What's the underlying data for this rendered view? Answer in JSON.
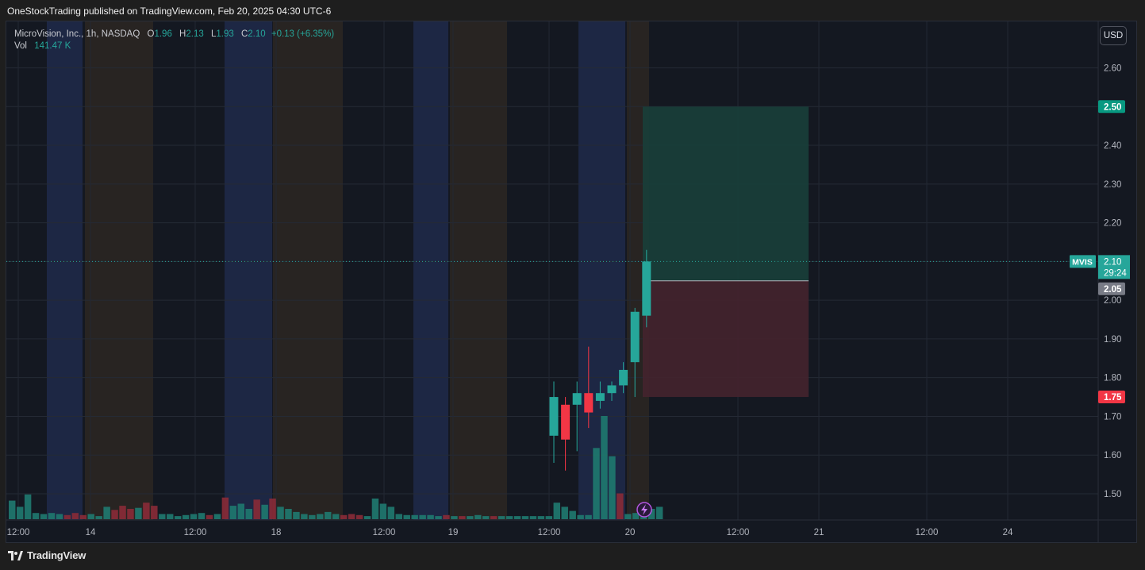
{
  "header": {
    "published": "OneStockTrading published on TradingView.com, Feb 20, 2025 04:30 UTC-6"
  },
  "legend": {
    "symbol": "MicroVision, Inc., 1h, NASDAQ",
    "o_key": "O",
    "o": "1.96",
    "h_key": "H",
    "h": "2.13",
    "l_key": "L",
    "l": "1.93",
    "c_key": "C",
    "c": "2.10",
    "change": "+0.13 (+6.35%)",
    "vol_key": "Vol",
    "vol": "141.47 K"
  },
  "currency_button": "USD",
  "branding": {
    "logo_icon": "tradingview-logo-icon",
    "name": "TradingView"
  },
  "colors": {
    "up": "#26a69a",
    "down": "#f23645",
    "bg": "#141821",
    "session_pre": "#1f2a4a",
    "session_post": "#2b2722",
    "target_zone": "#183f3a",
    "stop_zone": "#44232d"
  },
  "chart_data": {
    "type": "candlestick",
    "symbol": "MVIS",
    "interval": "1h",
    "yaxis": {
      "ylim": [
        1.42,
        2.72
      ],
      "ticks": [
        "1.50",
        "1.60",
        "1.70",
        "1.80",
        "1.90",
        "2.00",
        "2.10",
        "2.20",
        "2.30",
        "2.40",
        "2.50",
        "2.60"
      ]
    },
    "xaxis": {
      "ticks": [
        "12:00",
        "14",
        "12:00",
        "18",
        "12:00",
        "19",
        "12:00",
        "20",
        "12:00",
        "21",
        "12:00",
        "24"
      ]
    },
    "sessions": [
      {
        "type": "pre"
      },
      {
        "type": "post"
      },
      {
        "type": "pre"
      },
      {
        "type": "post"
      },
      {
        "type": "pre"
      },
      {
        "type": "post"
      },
      {
        "type": "pre"
      },
      {
        "type": "post"
      }
    ],
    "candles": [
      {
        "o": 1.65,
        "h": 1.79,
        "l": 1.58,
        "c": 1.75
      },
      {
        "o": 1.73,
        "h": 1.75,
        "l": 1.56,
        "c": 1.64
      },
      {
        "o": 1.73,
        "h": 1.79,
        "l": 1.61,
        "c": 1.76
      },
      {
        "o": 1.76,
        "h": 1.88,
        "l": 1.67,
        "c": 1.71
      },
      {
        "o": 1.74,
        "h": 1.79,
        "l": 1.72,
        "c": 1.76
      },
      {
        "o": 1.76,
        "h": 1.79,
        "l": 1.74,
        "c": 1.78
      },
      {
        "o": 1.78,
        "h": 1.84,
        "l": 1.76,
        "c": 1.82
      },
      {
        "o": 1.84,
        "h": 1.98,
        "l": 1.75,
        "c": 1.97
      },
      {
        "o": 1.96,
        "h": 2.13,
        "l": 1.93,
        "c": 2.1
      }
    ],
    "volume": [
      {
        "v": 0.18,
        "up": true
      },
      {
        "v": 0.12,
        "up": true
      },
      {
        "v": 0.24,
        "up": true
      },
      {
        "v": 0.06,
        "up": true
      },
      {
        "v": 0.05,
        "up": true
      },
      {
        "v": 0.06,
        "up": true
      },
      {
        "v": 0.05,
        "up": true
      },
      {
        "v": 0.04,
        "up": false
      },
      {
        "v": 0.06,
        "up": false
      },
      {
        "v": 0.04,
        "up": false
      },
      {
        "v": 0.05,
        "up": true
      },
      {
        "v": 0.03,
        "up": true
      },
      {
        "v": 0.12,
        "up": true
      },
      {
        "v": 0.09,
        "up": false
      },
      {
        "v": 0.13,
        "up": false
      },
      {
        "v": 0.1,
        "up": false
      },
      {
        "v": 0.11,
        "up": true
      },
      {
        "v": 0.16,
        "up": false
      },
      {
        "v": 0.13,
        "up": false
      },
      {
        "v": 0.05,
        "up": true
      },
      {
        "v": 0.05,
        "up": true
      },
      {
        "v": 0.03,
        "up": true
      },
      {
        "v": 0.04,
        "up": true
      },
      {
        "v": 0.05,
        "up": true
      },
      {
        "v": 0.06,
        "up": true
      },
      {
        "v": 0.04,
        "up": false
      },
      {
        "v": 0.05,
        "up": true
      },
      {
        "v": 0.21,
        "up": false
      },
      {
        "v": 0.13,
        "up": true
      },
      {
        "v": 0.15,
        "up": true
      },
      {
        "v": 0.1,
        "up": true
      },
      {
        "v": 0.19,
        "up": false
      },
      {
        "v": 0.14,
        "up": true
      },
      {
        "v": 0.2,
        "up": false
      },
      {
        "v": 0.12,
        "up": true
      },
      {
        "v": 0.1,
        "up": true
      },
      {
        "v": 0.07,
        "up": true
      },
      {
        "v": 0.05,
        "up": true
      },
      {
        "v": 0.04,
        "up": true
      },
      {
        "v": 0.05,
        "up": true
      },
      {
        "v": 0.07,
        "up": true
      },
      {
        "v": 0.05,
        "up": true
      },
      {
        "v": 0.04,
        "up": false
      },
      {
        "v": 0.05,
        "up": false
      },
      {
        "v": 0.04,
        "up": false
      },
      {
        "v": 0.03,
        "up": true
      },
      {
        "v": 0.2,
        "up": true
      },
      {
        "v": 0.15,
        "up": true
      },
      {
        "v": 0.12,
        "up": true
      },
      {
        "v": 0.05,
        "up": true
      },
      {
        "v": 0.04,
        "up": true
      },
      {
        "v": 0.04,
        "up": true
      },
      {
        "v": 0.04,
        "up": true
      },
      {
        "v": 0.04,
        "up": true
      },
      {
        "v": 0.03,
        "up": true
      },
      {
        "v": 0.04,
        "up": false
      },
      {
        "v": 0.03,
        "up": true
      },
      {
        "v": 0.03,
        "up": false
      },
      {
        "v": 0.03,
        "up": true
      },
      {
        "v": 0.04,
        "up": true
      },
      {
        "v": 0.03,
        "up": true
      },
      {
        "v": 0.03,
        "up": false
      },
      {
        "v": 0.03,
        "up": true
      },
      {
        "v": 0.03,
        "up": true
      },
      {
        "v": 0.03,
        "up": true
      },
      {
        "v": 0.03,
        "up": true
      },
      {
        "v": 0.03,
        "up": true
      },
      {
        "v": 0.03,
        "up": true
      },
      {
        "v": 0.03,
        "up": true
      },
      {
        "v": 0.16,
        "up": true
      },
      {
        "v": 0.12,
        "up": true
      },
      {
        "v": 0.08,
        "up": true
      },
      {
        "v": 0.04,
        "up": true
      },
      {
        "v": 0.04,
        "up": true
      },
      {
        "v": 0.69,
        "up": true
      },
      {
        "v": 1.0,
        "up": true
      },
      {
        "v": 0.61,
        "up": true
      },
      {
        "v": 0.25,
        "up": false
      },
      {
        "v": 0.05,
        "up": true
      },
      {
        "v": 0.06,
        "up": true
      },
      {
        "v": 0.08,
        "up": true
      },
      {
        "v": 0.1,
        "up": true
      },
      {
        "v": 0.12,
        "up": true
      }
    ],
    "position": {
      "entry": 2.05,
      "target": 2.5,
      "stop": 1.75
    },
    "last_price": {
      "symbol": "MVIS",
      "price": "2.10",
      "countdown": "29:24",
      "value": 2.1
    },
    "price_labels": [
      {
        "text": "2.50",
        "value": 2.5,
        "kind": "target"
      },
      {
        "text": "2.05",
        "value": 2.05,
        "kind": "entry"
      },
      {
        "text": "1.75",
        "value": 1.75,
        "kind": "stop"
      }
    ],
    "grid": true
  }
}
